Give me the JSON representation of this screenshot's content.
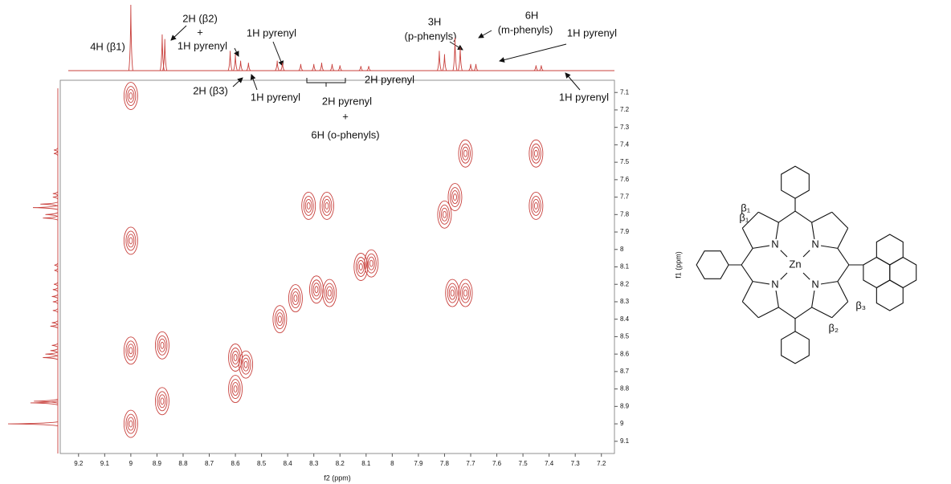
{
  "chart_data": {
    "type": "contour",
    "color": "#c8403c",
    "x_label": "f2 (ppm)",
    "y_label": "f1 (ppm)",
    "xlim": [
      9.27,
      7.15
    ],
    "ylim": [
      7.03,
      9.17
    ],
    "xticks": [
      9.2,
      9.1,
      9.0,
      8.9,
      8.8,
      8.7,
      8.6,
      8.5,
      8.4,
      8.3,
      8.2,
      8.1,
      8.0,
      7.9,
      7.8,
      7.7,
      7.6,
      7.5,
      7.4,
      7.3,
      7.2
    ],
    "yticks": [
      7.1,
      7.2,
      7.3,
      7.4,
      7.5,
      7.6,
      7.7,
      7.8,
      7.9,
      8.0,
      8.1,
      8.2,
      8.3,
      8.4,
      8.5,
      8.6,
      8.7,
      8.8,
      8.9,
      9.0,
      9.1
    ],
    "cross_peaks": {
      "x": [
        9.0,
        9.0,
        9.0,
        9.0,
        8.88,
        8.88,
        8.6,
        8.6,
        8.56,
        8.43,
        8.37,
        8.29,
        8.24,
        8.32,
        8.25,
        8.12,
        8.08,
        7.8,
        7.76,
        7.72,
        7.77,
        7.72,
        7.45,
        7.45
      ],
      "y": [
        9.0,
        8.58,
        7.95,
        7.12,
        8.87,
        8.55,
        8.62,
        8.8,
        8.66,
        8.4,
        8.28,
        8.23,
        8.25,
        7.75,
        7.75,
        8.1,
        8.08,
        7.8,
        7.7,
        7.45,
        8.25,
        8.25,
        7.45,
        7.75
      ]
    },
    "spectrum_1d": {
      "ppm": [
        9.0,
        8.88,
        8.87,
        8.62,
        8.6,
        8.58,
        8.55,
        8.44,
        8.42,
        8.35,
        8.3,
        8.27,
        8.23,
        8.2,
        8.12,
        8.09,
        7.82,
        7.8,
        7.76,
        7.74,
        7.7,
        7.68,
        7.45,
        7.43
      ],
      "intensity": [
        100,
        55,
        48,
        30,
        25,
        15,
        12,
        15,
        12,
        10,
        10,
        12,
        10,
        8,
        7,
        7,
        30,
        25,
        50,
        35,
        10,
        10,
        8,
        8
      ]
    },
    "annotations": [
      "4H (β1)",
      "2H (β2)",
      "+",
      "1H pyrenyl",
      "1H pyrenyl",
      "2H (β3)",
      "1H pyrenyl",
      "2H pyrenyl",
      "+",
      "6H  (o-phenyls)",
      "2H pyrenyl",
      "3H",
      "(p-phenyls)",
      "6H",
      "(m-phenyls)",
      "1H pyrenyl",
      "1H pyrenyl"
    ],
    "molecule": {
      "metal": "Zn",
      "nitrogen": "N",
      "beta_1": "β₁",
      "beta_2": "β₂",
      "beta_3": "β₃"
    }
  }
}
